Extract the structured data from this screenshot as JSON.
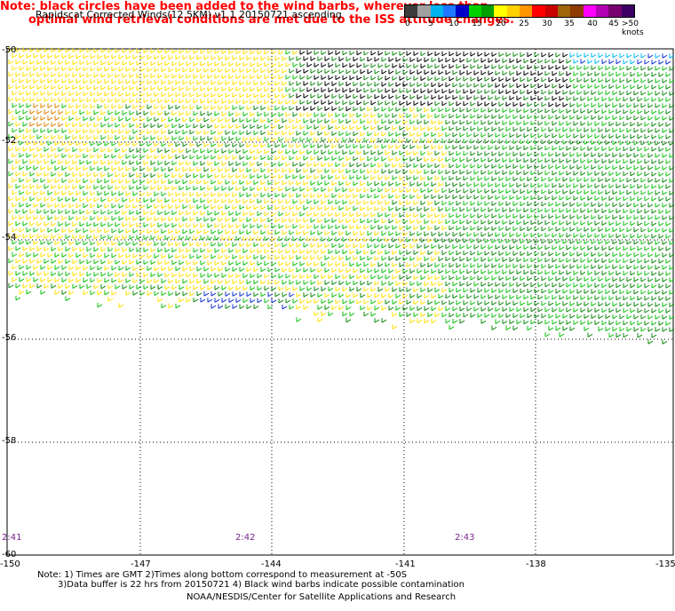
{
  "title": "Rapidscat Corrected Winds(12.5KM) v1.1 20150721 ascending",
  "note_line1": "Note: black circles have been added to the wind barbs, wherever less than",
  "note_line2": "optimal wind retrieval conditions are met due to the ISS attitude changes.",
  "legend": {
    "colors": [
      "#3c3c3c",
      "#a0a0a0",
      "#00b4f0",
      "#1e78ff",
      "#0000c8",
      "#00d200",
      "#00a000",
      "#ffff00",
      "#ffd200",
      "#ff9600",
      "#ff0000",
      "#c80000",
      "#a0640a",
      "#8c3c00",
      "#ff00ff",
      "#b400b4",
      "#78006e",
      "#3c0064"
    ],
    "labels": [
      "0",
      "5",
      "10",
      "15",
      "20",
      "25",
      "30",
      "35",
      "40",
      "45",
      ">50 knots"
    ]
  },
  "lat_labels": [
    "-50",
    "-52",
    "-54",
    "-56",
    "-58",
    "-60"
  ],
  "lon_labels": [
    "-150",
    "-147",
    "-144",
    "-141",
    "-138",
    "-135"
  ],
  "time_labels": [
    "2:41",
    "2:42",
    "2:43"
  ],
  "footer": {
    "line1": "Note: 1) Times are GMT 2)Times along bottom correspond to measurement at -50S",
    "line2": "3)Data buffer is 22 hrs from 20150721 4) Black wind barbs indicate possible contamination",
    "line3": "NOAA/NESDIS/Center for Satellite Applications and Research"
  }
}
